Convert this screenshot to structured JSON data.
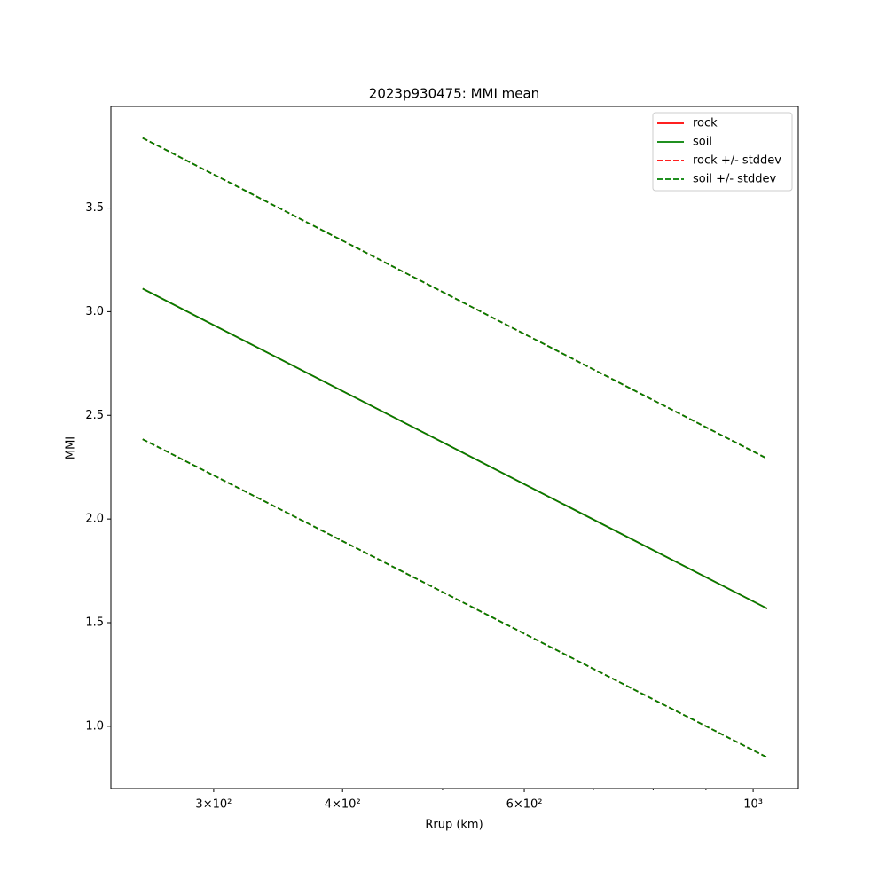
{
  "chart_data": {
    "type": "line",
    "title": "2023p930475: MMI mean",
    "xlabel": "Rrup (km)",
    "ylabel": "MMI",
    "xscale": "log",
    "x": [
      256,
      1032
    ],
    "series": [
      {
        "name": "rock",
        "color": "#ff0000",
        "style": "solid",
        "values": [
          3.111,
          1.568
        ]
      },
      {
        "name": "soil",
        "color": "#008000",
        "style": "solid",
        "values": [
          3.111,
          1.568
        ]
      },
      {
        "name": "rock +/- stddev",
        "color": "#ff0000",
        "style": "dashed",
        "upper": [
          3.838,
          2.291
        ],
        "lower": [
          2.385,
          0.85
        ]
      },
      {
        "name": "soil +/- stddev",
        "color": "#008000",
        "style": "dashed",
        "upper": [
          3.838,
          2.291
        ],
        "lower": [
          2.385,
          0.85
        ]
      }
    ],
    "xlim": [
      238.5,
      1106
    ],
    "xticks": [
      {
        "value": 300,
        "label": "3×10²"
      },
      {
        "value": 400,
        "label": "4×10²"
      },
      {
        "value": 600,
        "label": "6×10²"
      },
      {
        "value": 1000,
        "label": "10³"
      }
    ],
    "xminorticks": [
      500,
      700,
      800,
      900
    ],
    "ylim": [
      0.7,
      3.99
    ],
    "yticks": [
      {
        "value": 1,
        "label": "1.0"
      },
      1.5,
      {
        "value": 2,
        "label": "2.0"
      },
      2.5,
      {
        "value": 3,
        "label": "3.0"
      },
      3.5
    ],
    "legend": "upper right",
    "grid": false
  }
}
